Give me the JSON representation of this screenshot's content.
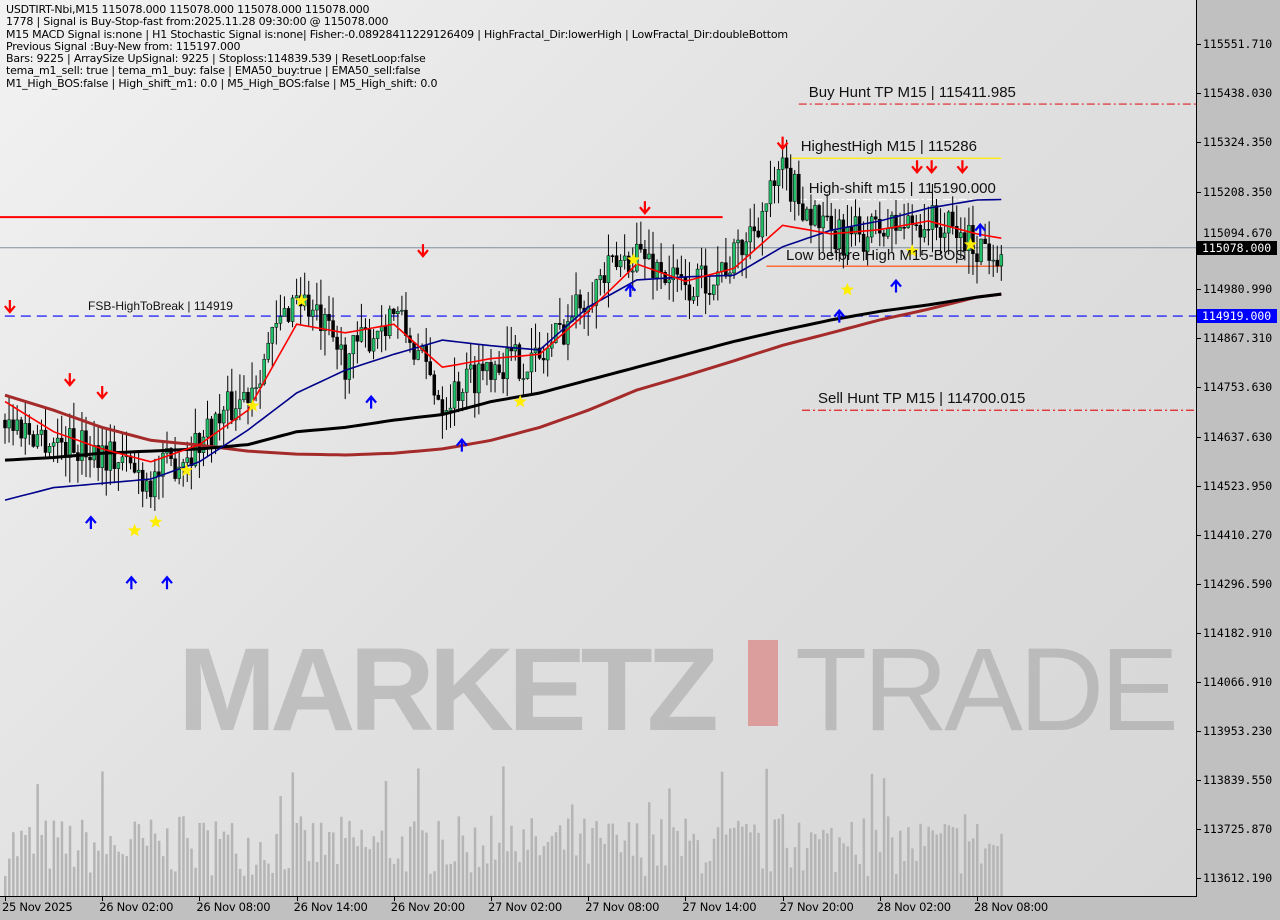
{
  "info_lines": [
    "USDTIRT-Nbi,M15  115078.000 115078.000 115078.000 115078.000",
    "1778 | Signal is Buy-Stop-fast from:2025.11.28 09:30:00 @ 115078.000",
    "M15 MACD Signal is:none | H1 Stochastic Signal is:none| Fisher:-0.08928411229126409 | HighFractal_Dir:lowerHigh | LowFractal_Dir:doubleBottom",
    "Previous Signal :Buy-New from: 115197.000",
    "Bars: 9225 | ArraySize UpSignal: 9225 | Stoploss:114839.539 | ResetLoop:false",
    "tema_m1_sell: true | tema_m1_buy: false | EMA50_buy:true | EMA50_sell:false",
    "M1_High_BOS:false | High_shift_m1: 0.0 | M5_High_BOS:false | M5_High_shift: 0.0"
  ],
  "watermark": {
    "left": "MARKETZ",
    "right": "TRADE"
  },
  "colors": {
    "bull": "#22c06a",
    "bear": "#000000",
    "ema_fast": "#ff0000",
    "ema_mid": "#00008b",
    "ma_slow": "#000000",
    "ma_slow2": "#a52a2a",
    "hline_red": "#ff0000",
    "hline_blue": "#0000ff",
    "current_badge": "#000000",
    "blue_badge": "#0000ff"
  },
  "chart_data": {
    "type": "candlestick",
    "symbol": "USDTIRT-Nbi",
    "timeframe": "M15",
    "ylim": [
      113560,
      115620
    ],
    "y_ticks": [
      "115551.710",
      "115438.030",
      "115324.350",
      "115208.350",
      "115094.670",
      "114980.990",
      "114867.310",
      "114753.630",
      "114637.630",
      "114523.950",
      "114410.270",
      "114296.590",
      "114182.910",
      "114066.910",
      "113953.230",
      "113839.550",
      "113725.870",
      "113612.190"
    ],
    "x_ticks": [
      "25 Nov 2025",
      "26 Nov 02:00",
      "26 Nov 08:00",
      "26 Nov 14:00",
      "26 Nov 20:00",
      "27 Nov 02:00",
      "27 Nov 08:00",
      "27 Nov 14:00",
      "27 Nov 20:00",
      "28 Nov 02:00",
      "28 Nov 08:00"
    ],
    "x_tick_hours": [
      0,
      6,
      12,
      18,
      24,
      30,
      36,
      42,
      48,
      54,
      60
    ],
    "sample_hours": [
      0,
      3,
      6,
      9,
      12,
      15,
      18,
      21,
      24,
      27,
      30,
      33,
      36,
      39,
      42,
      45,
      48,
      51,
      54,
      57,
      60,
      61.5
    ],
    "close": [
      114677,
      114630,
      114607,
      114537,
      114630,
      114747,
      114979,
      114816,
      114933,
      114723,
      114816,
      114816,
      114979,
      115072,
      114979,
      115049,
      115247,
      115096,
      115119,
      115142,
      115084,
      115078
    ],
    "ema_red": [
      114720,
      114650,
      114610,
      114580,
      114620,
      114700,
      114900,
      114880,
      114900,
      114800,
      114820,
      114830,
      114930,
      115040,
      115000,
      115030,
      115130,
      115110,
      115120,
      115140,
      115110,
      115100
    ],
    "ema_blue": [
      114491,
      114520,
      114530,
      114540,
      114580,
      114654,
      114740,
      114793,
      114830,
      114863,
      114850,
      114840,
      114940,
      115003,
      115010,
      115014,
      115080,
      115119,
      115140,
      115170,
      115189,
      115190
    ],
    "ma_black": [
      114584,
      114590,
      114600,
      114605,
      114610,
      114620,
      114650,
      114660,
      114677,
      114690,
      114720,
      114740,
      114770,
      114800,
      114830,
      114860,
      114886,
      114910,
      114930,
      114945,
      114963,
      114970
    ],
    "ma_brown": [
      114735,
      114700,
      114660,
      114630,
      114619,
      114605,
      114598,
      114596,
      114600,
      114610,
      114630,
      114660,
      114700,
      114747,
      114780,
      114815,
      114851,
      114880,
      114910,
      114935,
      114963,
      114970
    ],
    "current_price": "115078.000",
    "hlines": [
      {
        "label": "Buy Hunt TP M15 | 115411.985",
        "price": 115411.985,
        "style": "dashdot",
        "color": "#e02020",
        "from_h": 49
      },
      {
        "label": "HighestHigh    M15 | 115286",
        "price": 115286,
        "style": "solid",
        "color": "#ffee00",
        "from_h": 48.5,
        "to_h": 61.5
      },
      {
        "label": "High-shift m15 | 115190.000",
        "price": 115190,
        "style": "dashdot",
        "color": "#ffffff",
        "from_h": 49,
        "to_h": 61.5
      },
      {
        "label": "Low before High  M15-BOS",
        "price": 115035,
        "style": "solid",
        "color": "#ff4500",
        "from_h": 47,
        "to_h": 61.5
      },
      {
        "label": "Sell Hunt TP M15 | 114700.015",
        "price": 114700.015,
        "style": "dashdot",
        "color": "#e02020",
        "from_h": 49.2
      },
      {
        "label": "FSB-HighToBreak | 114919",
        "price": 114919,
        "style": "dashed",
        "color": "#0000ff",
        "from_h": -1
      },
      {
        "label": "",
        "price": 115149,
        "style": "solid",
        "color": "#ff0000",
        "from_h": -1,
        "to_h": 44.3
      }
    ],
    "signals": [
      {
        "type": "sell",
        "h": 0.3,
        "price": 114940
      },
      {
        "type": "sell",
        "h": 4,
        "price": 114770
      },
      {
        "type": "sell",
        "h": 6,
        "price": 114740
      },
      {
        "type": "buy",
        "h": 5.3,
        "price": 114440
      },
      {
        "type": "buy",
        "h": 7.8,
        "price": 114300
      },
      {
        "type": "buy",
        "h": 10,
        "price": 114300
      },
      {
        "type": "star",
        "h": 8,
        "price": 114420
      },
      {
        "type": "star",
        "h": 9.3,
        "price": 114440
      },
      {
        "type": "star",
        "h": 11.2,
        "price": 114560
      },
      {
        "type": "star",
        "h": 15.3,
        "price": 114710
      },
      {
        "type": "star",
        "h": 18.3,
        "price": 114955
      },
      {
        "type": "buy",
        "h": 22.6,
        "price": 114720
      },
      {
        "type": "sell",
        "h": 25.8,
        "price": 115070
      },
      {
        "type": "buy",
        "h": 28.2,
        "price": 114620
      },
      {
        "type": "star",
        "h": 31.8,
        "price": 114720
      },
      {
        "type": "sell",
        "h": 39.5,
        "price": 115170
      },
      {
        "type": "buy",
        "h": 38.6,
        "price": 114980
      },
      {
        "type": "star",
        "h": 38.8,
        "price": 115050
      },
      {
        "type": "sell",
        "h": 48,
        "price": 115320
      },
      {
        "type": "sell",
        "h": 56.3,
        "price": 115265
      },
      {
        "type": "sell",
        "h": 57.2,
        "price": 115265
      },
      {
        "type": "sell",
        "h": 59.1,
        "price": 115265
      },
      {
        "type": "buy",
        "h": 51.5,
        "price": 114920
      },
      {
        "type": "buy",
        "h": 55,
        "price": 114990
      },
      {
        "type": "star",
        "h": 52,
        "price": 114980
      },
      {
        "type": "star",
        "h": 56,
        "price": 115070
      },
      {
        "type": "star",
        "h": 59.6,
        "price": 115085
      },
      {
        "type": "buy",
        "h": 60.2,
        "price": 115120
      }
    ]
  }
}
